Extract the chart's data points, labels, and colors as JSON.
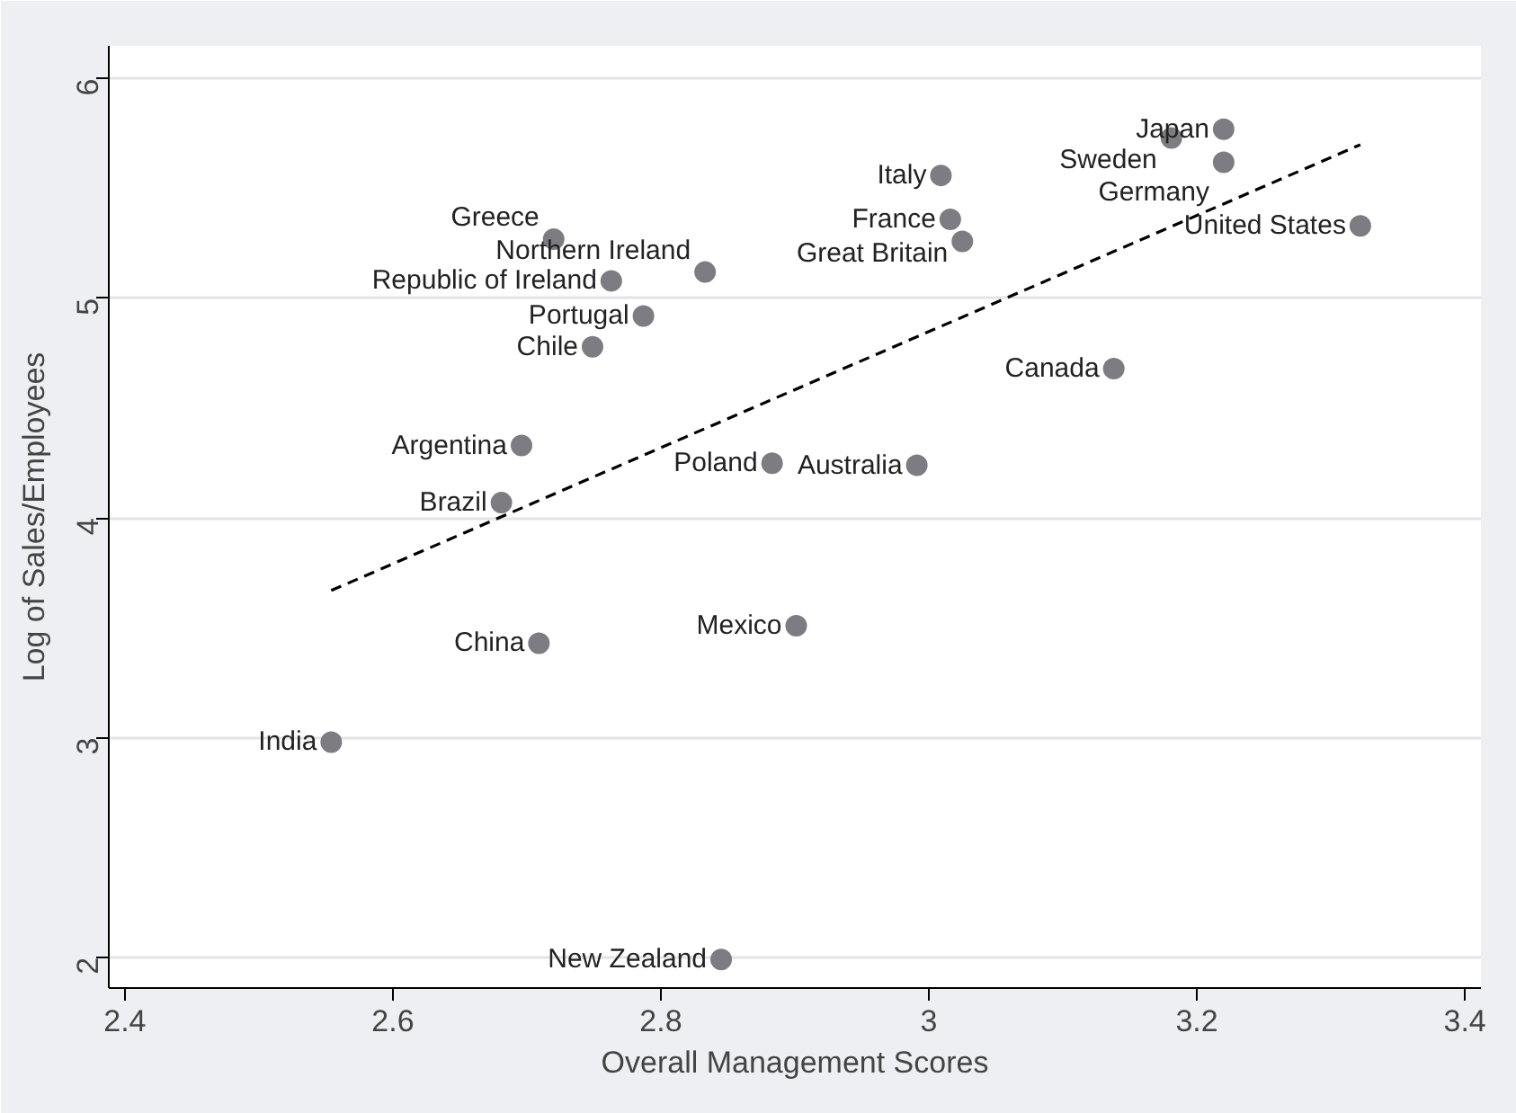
{
  "chart_data": {
    "type": "scatter",
    "xlabel": "Overall Management Scores",
    "ylabel": "Log of Sales/Employees",
    "xlim": [
      2.388,
      3.412
    ],
    "ylim": [
      1.86,
      6.15
    ],
    "xticks": [
      2.4,
      2.6,
      2.8,
      3,
      3.2,
      3.4
    ],
    "yticks": [
      2,
      3,
      4,
      5,
      6
    ],
    "grid": "y",
    "series": [
      {
        "color": "#7c7c82",
        "marker": "circle",
        "x": [
          2.554,
          2.845,
          2.709,
          2.901,
          2.681,
          2.696,
          2.883,
          2.991,
          3.138,
          2.749,
          2.787,
          2.763,
          2.833,
          2.72,
          3.009,
          3.016,
          3.025,
          3.322,
          3.22,
          3.181,
          3.22
        ],
        "values": [
          2.98,
          1.99,
          3.43,
          3.51,
          4.07,
          4.33,
          4.25,
          4.24,
          4.68,
          4.78,
          4.92,
          5.08,
          5.12,
          5.27,
          5.56,
          5.36,
          5.26,
          5.33,
          5.77,
          5.73,
          5.62
        ]
      },
      {
        "type": "line",
        "color": "#000000",
        "line_style": "dashed",
        "x": [
          2.554,
          3.322
        ],
        "values": [
          3.67,
          5.7
        ]
      }
    ],
    "annotations": [
      {
        "text": "India",
        "x": 2.554,
        "y": 2.98
      },
      {
        "text": "New Zealand",
        "x": 2.845,
        "y": 1.99
      },
      {
        "text": "China",
        "x": 2.709,
        "y": 3.43
      },
      {
        "text": "Mexico",
        "x": 2.901,
        "y": 3.51
      },
      {
        "text": "Brazil",
        "x": 2.681,
        "y": 4.07
      },
      {
        "text": "Argentina",
        "x": 2.696,
        "y": 4.33
      },
      {
        "text": "Poland",
        "x": 2.883,
        "y": 4.25
      },
      {
        "text": "Australia",
        "x": 2.991,
        "y": 4.24
      },
      {
        "text": "Canada",
        "x": 3.138,
        "y": 4.68
      },
      {
        "text": "Chile",
        "x": 2.749,
        "y": 4.78
      },
      {
        "text": "Portugal",
        "x": 2.787,
        "y": 4.92
      },
      {
        "text": "Republic of Ireland",
        "x": 2.763,
        "y": 5.08
      },
      {
        "text": "Northern Ireland",
        "x": 2.833,
        "y": 5.12
      },
      {
        "text": "Greece",
        "x": 2.72,
        "y": 5.27
      },
      {
        "text": "Italy",
        "x": 3.009,
        "y": 5.56
      },
      {
        "text": "France",
        "x": 3.016,
        "y": 5.36
      },
      {
        "text": "Great Britain",
        "x": 3.025,
        "y": 5.26
      },
      {
        "text": "United States",
        "x": 3.322,
        "y": 5.33
      },
      {
        "text": "Japan",
        "x": 3.22,
        "y": 5.77
      },
      {
        "text": "Sweden",
        "x": 3.181,
        "y": 5.73
      },
      {
        "text": "Germany",
        "x": 3.22,
        "y": 5.62
      }
    ]
  }
}
